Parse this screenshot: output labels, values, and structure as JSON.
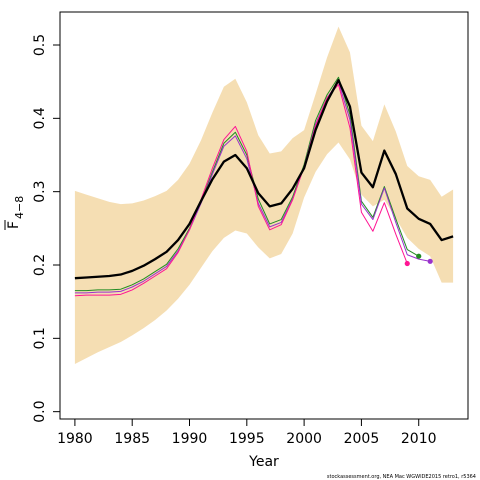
{
  "chart_data": {
    "type": "line",
    "xlabel": "Year",
    "ylabel_main": "F",
    "ylabel_sub": "4−8",
    "xlim": [
      1978.7,
      2014.3
    ],
    "ylim": [
      -0.01,
      0.545
    ],
    "x_ticks": [
      1980,
      1985,
      1990,
      1995,
      2000,
      2005,
      2010
    ],
    "x_tick_labels": [
      "1980",
      "1985",
      "1990",
      "1995",
      "2000",
      "2005",
      "2010"
    ],
    "y_ticks": [
      0.0,
      0.1,
      0.2,
      0.3,
      0.4,
      0.5
    ],
    "y_tick_labels": [
      "0.0",
      "0.1",
      "0.2",
      "0.3",
      "0.4",
      "0.5"
    ],
    "footnote": "stockassessment.org, NEA Mac WGWIDE2015 retro1, r5364",
    "band": {
      "color": "#F5DEB3",
      "x": [
        1980,
        1981,
        1982,
        1983,
        1984,
        1985,
        1986,
        1987,
        1988,
        1989,
        1990,
        1991,
        1992,
        1993,
        1994,
        1995,
        1996,
        1997,
        1998,
        1999,
        2000,
        2001,
        2002,
        2003,
        2004,
        2005,
        2006,
        2007,
        2008,
        2009,
        2010,
        2011,
        2012,
        2013
      ],
      "upper": [
        0.301,
        0.296,
        0.291,
        0.286,
        0.283,
        0.284,
        0.288,
        0.294,
        0.301,
        0.316,
        0.338,
        0.37,
        0.408,
        0.443,
        0.454,
        0.422,
        0.377,
        0.352,
        0.355,
        0.373,
        0.384,
        0.433,
        0.483,
        0.525,
        0.49,
        0.39,
        0.369,
        0.419,
        0.382,
        0.335,
        0.321,
        0.316,
        0.293,
        0.303
      ],
      "lower": [
        0.065,
        0.073,
        0.081,
        0.088,
        0.095,
        0.104,
        0.114,
        0.125,
        0.138,
        0.154,
        0.173,
        0.196,
        0.219,
        0.237,
        0.247,
        0.243,
        0.224,
        0.209,
        0.215,
        0.243,
        0.292,
        0.327,
        0.351,
        0.367,
        0.344,
        0.296,
        0.28,
        0.289,
        0.264,
        0.237,
        0.222,
        0.212,
        0.176,
        0.176
      ]
    },
    "series": [
      {
        "color": "#000000",
        "width": 2.3,
        "x": [
          1980,
          1981,
          1982,
          1983,
          1984,
          1985,
          1986,
          1987,
          1988,
          1989,
          1990,
          1991,
          1992,
          1993,
          1994,
          1995,
          1996,
          1997,
          1998,
          1999,
          2000,
          2001,
          2002,
          2003,
          2004,
          2005,
          2006,
          2007,
          2008,
          2009,
          2010,
          2011,
          2012,
          2013
        ],
        "values": [
          0.182,
          0.183,
          0.184,
          0.185,
          0.187,
          0.192,
          0.199,
          0.208,
          0.218,
          0.234,
          0.256,
          0.287,
          0.317,
          0.341,
          0.35,
          0.332,
          0.298,
          0.28,
          0.284,
          0.304,
          0.332,
          0.384,
          0.423,
          0.452,
          0.416,
          0.326,
          0.306,
          0.356,
          0.324,
          0.277,
          0.263,
          0.256,
          0.234,
          0.239
        ]
      },
      {
        "color": "#228B22",
        "width": 1,
        "x": [
          1980,
          1981,
          1982,
          1983,
          1984,
          1985,
          1986,
          1987,
          1988,
          1989,
          1990,
          1991,
          1992,
          1993,
          1994,
          1995,
          1996,
          1997,
          1998,
          1999,
          2000,
          2001,
          2002,
          2003,
          2004,
          2005,
          2006,
          2007,
          2008,
          2009,
          2010
        ],
        "values": [
          0.165,
          0.165,
          0.166,
          0.166,
          0.167,
          0.173,
          0.181,
          0.191,
          0.201,
          0.222,
          0.25,
          0.286,
          0.327,
          0.366,
          0.381,
          0.35,
          0.29,
          0.256,
          0.262,
          0.293,
          0.337,
          0.397,
          0.432,
          0.456,
          0.405,
          0.287,
          0.265,
          0.307,
          0.263,
          0.221,
          0.212
        ],
        "end_marker": true
      },
      {
        "color": "#9932CC",
        "width": 1,
        "x": [
          1980,
          1981,
          1982,
          1983,
          1984,
          1985,
          1986,
          1987,
          1988,
          1989,
          1990,
          1991,
          1992,
          1993,
          1994,
          1995,
          1996,
          1997,
          1998,
          1999,
          2000,
          2001,
          2002,
          2003,
          2004,
          2005,
          2006,
          2007,
          2008,
          2009,
          2010,
          2011
        ],
        "values": [
          0.162,
          0.162,
          0.163,
          0.163,
          0.164,
          0.17,
          0.178,
          0.188,
          0.198,
          0.219,
          0.248,
          0.284,
          0.324,
          0.362,
          0.376,
          0.345,
          0.284,
          0.252,
          0.258,
          0.29,
          0.334,
          0.392,
          0.428,
          0.45,
          0.398,
          0.283,
          0.262,
          0.305,
          0.258,
          0.214,
          0.208,
          0.205
        ],
        "end_marker": true
      },
      {
        "color": "#FF1493",
        "width": 1,
        "x": [
          1980,
          1981,
          1982,
          1983,
          1984,
          1985,
          1986,
          1987,
          1988,
          1989,
          1990,
          1991,
          1992,
          1993,
          1994,
          1995,
          1996,
          1997,
          1998,
          1999,
          2000,
          2001,
          2002,
          2003,
          2004,
          2005,
          2006,
          2007,
          2008,
          2009
        ],
        "values": [
          0.158,
          0.159,
          0.159,
          0.159,
          0.16,
          0.166,
          0.175,
          0.185,
          0.195,
          0.217,
          0.248,
          0.289,
          0.332,
          0.371,
          0.389,
          0.355,
          0.28,
          0.248,
          0.255,
          0.289,
          0.334,
          0.39,
          0.428,
          0.446,
          0.387,
          0.272,
          0.246,
          0.285,
          0.242,
          0.202
        ],
        "end_marker": true
      }
    ]
  }
}
